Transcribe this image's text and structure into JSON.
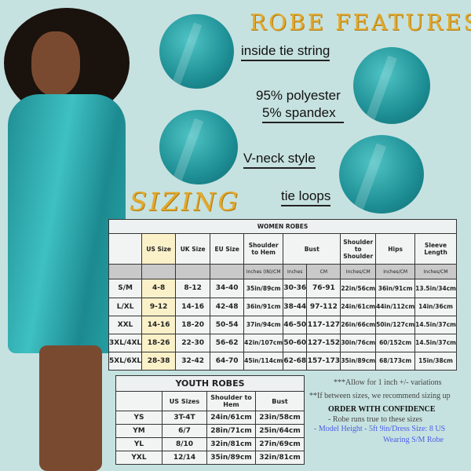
{
  "features": {
    "heading": "ROBE FEATURES",
    "items": [
      "inside tie string",
      "95% polyester",
      "5% spandex",
      "V-neck style",
      "tie loops"
    ]
  },
  "sizing_heading": "SIZING",
  "women": {
    "title": "WOMEN ROBES",
    "headers": [
      "",
      "US Size",
      "UK Size",
      "EU Size",
      "Shoulder to Hem",
      "Bust",
      "Shoulder to Shoulder",
      "Hips",
      "Sleeve Length"
    ],
    "units": [
      "",
      "",
      "",
      "",
      "Inches (IN)/CM",
      "Inches",
      "CM",
      "Inches/CM",
      "Inches/CM",
      "Inches/CM"
    ],
    "rows": [
      [
        "S/M",
        "4-8",
        "8-12",
        "34-40",
        "35in/89cm",
        "30-36",
        "76-91",
        "22in/56cm",
        "36in/91cm",
        "13.5in/34cm"
      ],
      [
        "L/XL",
        "9-12",
        "14-16",
        "42-48",
        "36in/91cm",
        "38-44",
        "97-112",
        "24in/61cm",
        "44in/112cm",
        "14in/36cm"
      ],
      [
        "XXL",
        "14-16",
        "18-20",
        "50-54",
        "37in/94cm",
        "46-50",
        "117-127",
        "26in/66cm",
        "50in/127cm",
        "14.5in/37cm"
      ],
      [
        "3XL/4XL",
        "18-26",
        "22-30",
        "56-62",
        "42in/107cm",
        "50-60",
        "127-152",
        "30in/76cm",
        "60/152cm",
        "14.5in/37cm"
      ],
      [
        "5XL/6XL",
        "28-38",
        "32-42",
        "64-70",
        "45in/114cm",
        "62-68",
        "157-173",
        "35in/89cm",
        "68/173cm",
        "15in/38cm"
      ]
    ]
  },
  "youth": {
    "title": "YOUTH ROBES",
    "headers": [
      "",
      "US Sizes",
      "Shoulder to Hem",
      "Bust"
    ],
    "rows": [
      [
        "YS",
        "3T-4T",
        "24in/61cm",
        "23in/58cm"
      ],
      [
        "YM",
        "6/7",
        "28in/71cm",
        "25in/64cm"
      ],
      [
        "YL",
        "8/10",
        "32in/81cm",
        "27in/69cm"
      ],
      [
        "YXL",
        "12/14",
        "35in/89cm",
        "32in/81cm"
      ]
    ]
  },
  "notes": {
    "allow": "***Allow for 1 inch +/- variations",
    "between": "**If between sizes, we recommend sizing up",
    "confidence": "ORDER WITH CONFIDENCE",
    "true_size": "- Robe runs true to these sizes",
    "model": "- Model Height - 5ft 9in/Dress Size: 8 US",
    "wearing": "Wearing S/M Robe"
  },
  "colors": {
    "robe": "#2aa7ab",
    "heading_gold": "#e3a92c",
    "model_note": "#4a5ee8"
  }
}
